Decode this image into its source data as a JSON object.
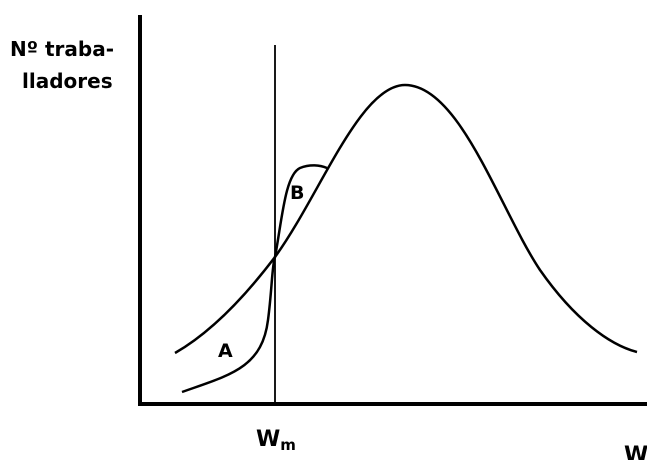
{
  "y_axis_label": [
    "Nº traba-",
    "lladores"
  ],
  "x_tick": {
    "main": "W",
    "sub": "m"
  },
  "x_axis_label": "W",
  "curve_labels": [
    "A",
    "B"
  ]
}
